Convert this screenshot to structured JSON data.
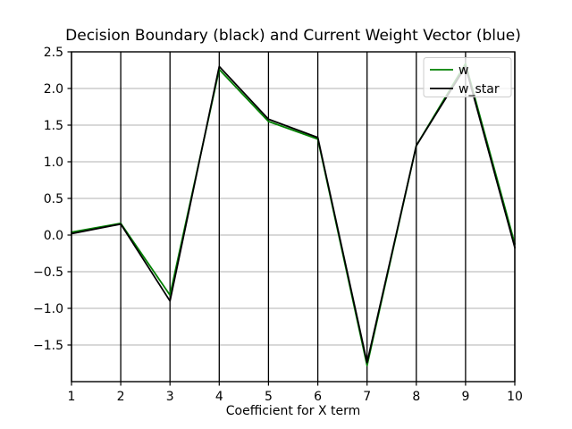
{
  "figure": {
    "background": "#ffffff"
  },
  "chart_data": {
    "type": "line",
    "title": "Decision Boundary (black) and Current Weight Vector (blue)",
    "xlabel": "Coefficient for X term",
    "ylabel": "",
    "x": [
      1,
      2,
      3,
      4,
      5,
      6,
      7,
      8,
      9,
      10
    ],
    "series": [
      {
        "name": "w",
        "color": "#008000",
        "values": [
          0.04,
          0.16,
          -0.82,
          2.26,
          1.55,
          1.31,
          -1.78,
          1.22,
          2.34,
          -0.12
        ]
      },
      {
        "name": "w_star",
        "color": "#000000",
        "values": [
          0.02,
          0.15,
          -0.9,
          2.3,
          1.58,
          1.33,
          -1.74,
          1.22,
          2.3,
          -0.17
        ]
      }
    ],
    "xlim": [
      1,
      10
    ],
    "ylim": [
      -2.0,
      2.5
    ],
    "xticks": {
      "values": [
        1,
        2,
        3,
        4,
        5,
        6,
        7,
        8,
        9,
        10
      ],
      "labels": [
        "1",
        "2",
        "3",
        "4",
        "5",
        "6",
        "7",
        "8",
        "9",
        "10"
      ]
    },
    "yticks": {
      "values": [
        2.5,
        2.0,
        1.5,
        1.0,
        0.5,
        0.0,
        -0.5,
        -1.0,
        -1.5
      ],
      "labels": [
        "2.5",
        "2.0",
        "1.5",
        "1.0",
        "0.5",
        "0.0",
        "−0.5",
        "−1.0",
        "−1.5"
      ]
    },
    "grid": {
      "on": true,
      "x_color": "#000000",
      "y_color": "#b0b0b0"
    },
    "legend": {
      "position": "upper right",
      "entries": [
        "w",
        "w_star"
      ],
      "background": "#ffffff",
      "opacity": 0.8,
      "border_color": "#cccccc"
    }
  }
}
